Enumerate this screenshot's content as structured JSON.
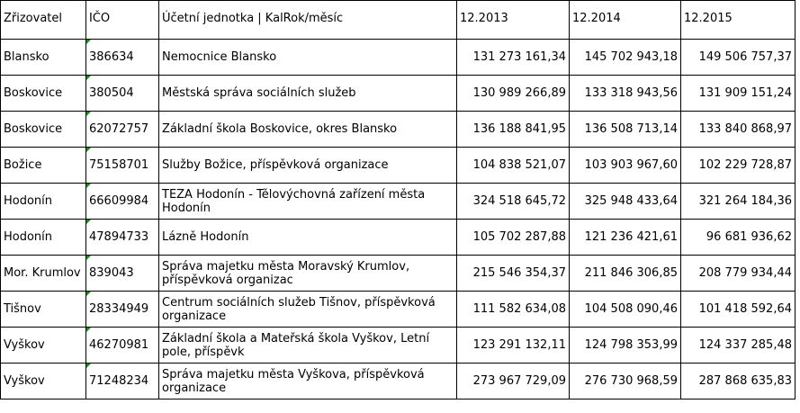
{
  "table": {
    "header": [
      "Zřizovatel",
      "IČO",
      "Účetní jednotka | KalRok/měsíc",
      "12.2013",
      "12.2014",
      "12.2015"
    ],
    "rows": [
      [
        "Blansko",
        "386634",
        "Nemocnice Blansko",
        "131 273 161,34",
        "145 702 943,18",
        "149 506 757,37"
      ],
      [
        "Boskovice",
        "380504",
        "Městská správa sociálních služeb",
        "130 989 266,89",
        "133 318 943,56",
        "131 909 151,24"
      ],
      [
        "Boskovice",
        "62072757",
        "Základní škola Boskovice, okres Blansko",
        "136 188 841,95",
        "136 508 713,14",
        "133 840 868,97"
      ],
      [
        "Božice",
        "75158701",
        "Služby Božice, příspěvková organizace",
        "104 838 521,07",
        "103 903 967,60",
        "102 229 728,87"
      ],
      [
        "Hodonín",
        "66609984",
        "TEZA Hodonín - Tělovýchovná zařízení města Hodonín",
        "324 518 645,72",
        "325 948 433,64",
        "321 264 184,36"
      ],
      [
        "Hodonín",
        "47894733",
        "Lázně Hodonín",
        "105 702 287,88",
        "121 236 421,61",
        "96 681 936,62"
      ],
      [
        "Mor. Krumlov",
        "839043",
        "Správa majetku města Moravský Krumlov, příspěvková organizac",
        "215 546 354,37",
        "211 846 306,85",
        "208 779 934,44"
      ],
      [
        "Tišnov",
        "28334949",
        "Centrum sociálních služeb Tišnov, příspěvková organizace",
        "111 582 634,08",
        "104 508 090,46",
        "101 418 592,64"
      ],
      [
        "Vyškov",
        "46270981",
        "Základní škola a Mateřská škola Vyškov, Letní pole, příspěvk",
        "123 291 132,11",
        "124 798 353,99",
        "124 337 285,48"
      ],
      [
        "Vyškov",
        "71248234",
        "Správa majetku města Vyškova, příspěvková organizace",
        "273 967 729,09",
        "276 730 968,59",
        "287 868 635,83"
      ]
    ]
  }
}
